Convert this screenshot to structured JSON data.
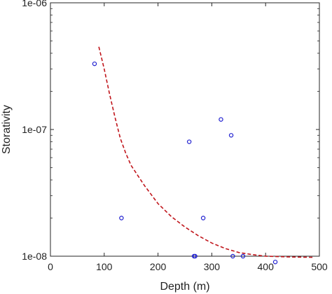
{
  "chart_data": {
    "type": "scatter",
    "title": "",
    "xlabel": "Depth (m)",
    "ylabel": "Storativity",
    "xlim": [
      0,
      500
    ],
    "ylim": [
      1e-08,
      1e-06
    ],
    "yscale": "log",
    "grid": false,
    "legend": "none",
    "x_ticks": [
      0,
      100,
      200,
      300,
      400,
      500
    ],
    "x_tick_labels": [
      "0",
      "100",
      "200",
      "300",
      "400",
      "500"
    ],
    "y_ticks": [
      1e-08,
      1e-07,
      1e-06
    ],
    "y_tick_labels": [
      "1e-08",
      "1e-07",
      "1e-06"
    ],
    "series": [
      {
        "kind": "scatter",
        "marker": "open-circle",
        "color": "#1f1fd0",
        "points": [
          [
            82,
            3.3e-07
          ],
          [
            132,
            2e-08
          ],
          [
            258,
            8e-08
          ],
          [
            267,
            1e-08
          ],
          [
            269,
            1e-08
          ],
          [
            284,
            2e-08
          ],
          [
            317,
            1.2e-07
          ],
          [
            336,
            9e-08
          ],
          [
            339,
            1e-08
          ],
          [
            358,
            1e-08
          ],
          [
            418,
            9e-09
          ]
        ]
      },
      {
        "kind": "line",
        "style": "dashed",
        "color": "#c0151b",
        "points": [
          [
            90,
            4.5e-07
          ],
          [
            100,
            3e-07
          ],
          [
            110,
            1.9e-07
          ],
          [
            120,
            1.25e-07
          ],
          [
            130,
            8.5e-08
          ],
          [
            140,
            6.5e-08
          ],
          [
            150,
            5.2e-08
          ],
          [
            175,
            3.6e-08
          ],
          [
            200,
            2.6e-08
          ],
          [
            225,
            2.05e-08
          ],
          [
            250,
            1.7e-08
          ],
          [
            275,
            1.45e-08
          ],
          [
            300,
            1.27e-08
          ],
          [
            325,
            1.15e-08
          ],
          [
            350,
            1.07e-08
          ],
          [
            375,
            1.03e-08
          ],
          [
            400,
            1e-08
          ],
          [
            450,
            9.85e-09
          ],
          [
            490,
            9.8e-09
          ]
        ]
      }
    ]
  }
}
